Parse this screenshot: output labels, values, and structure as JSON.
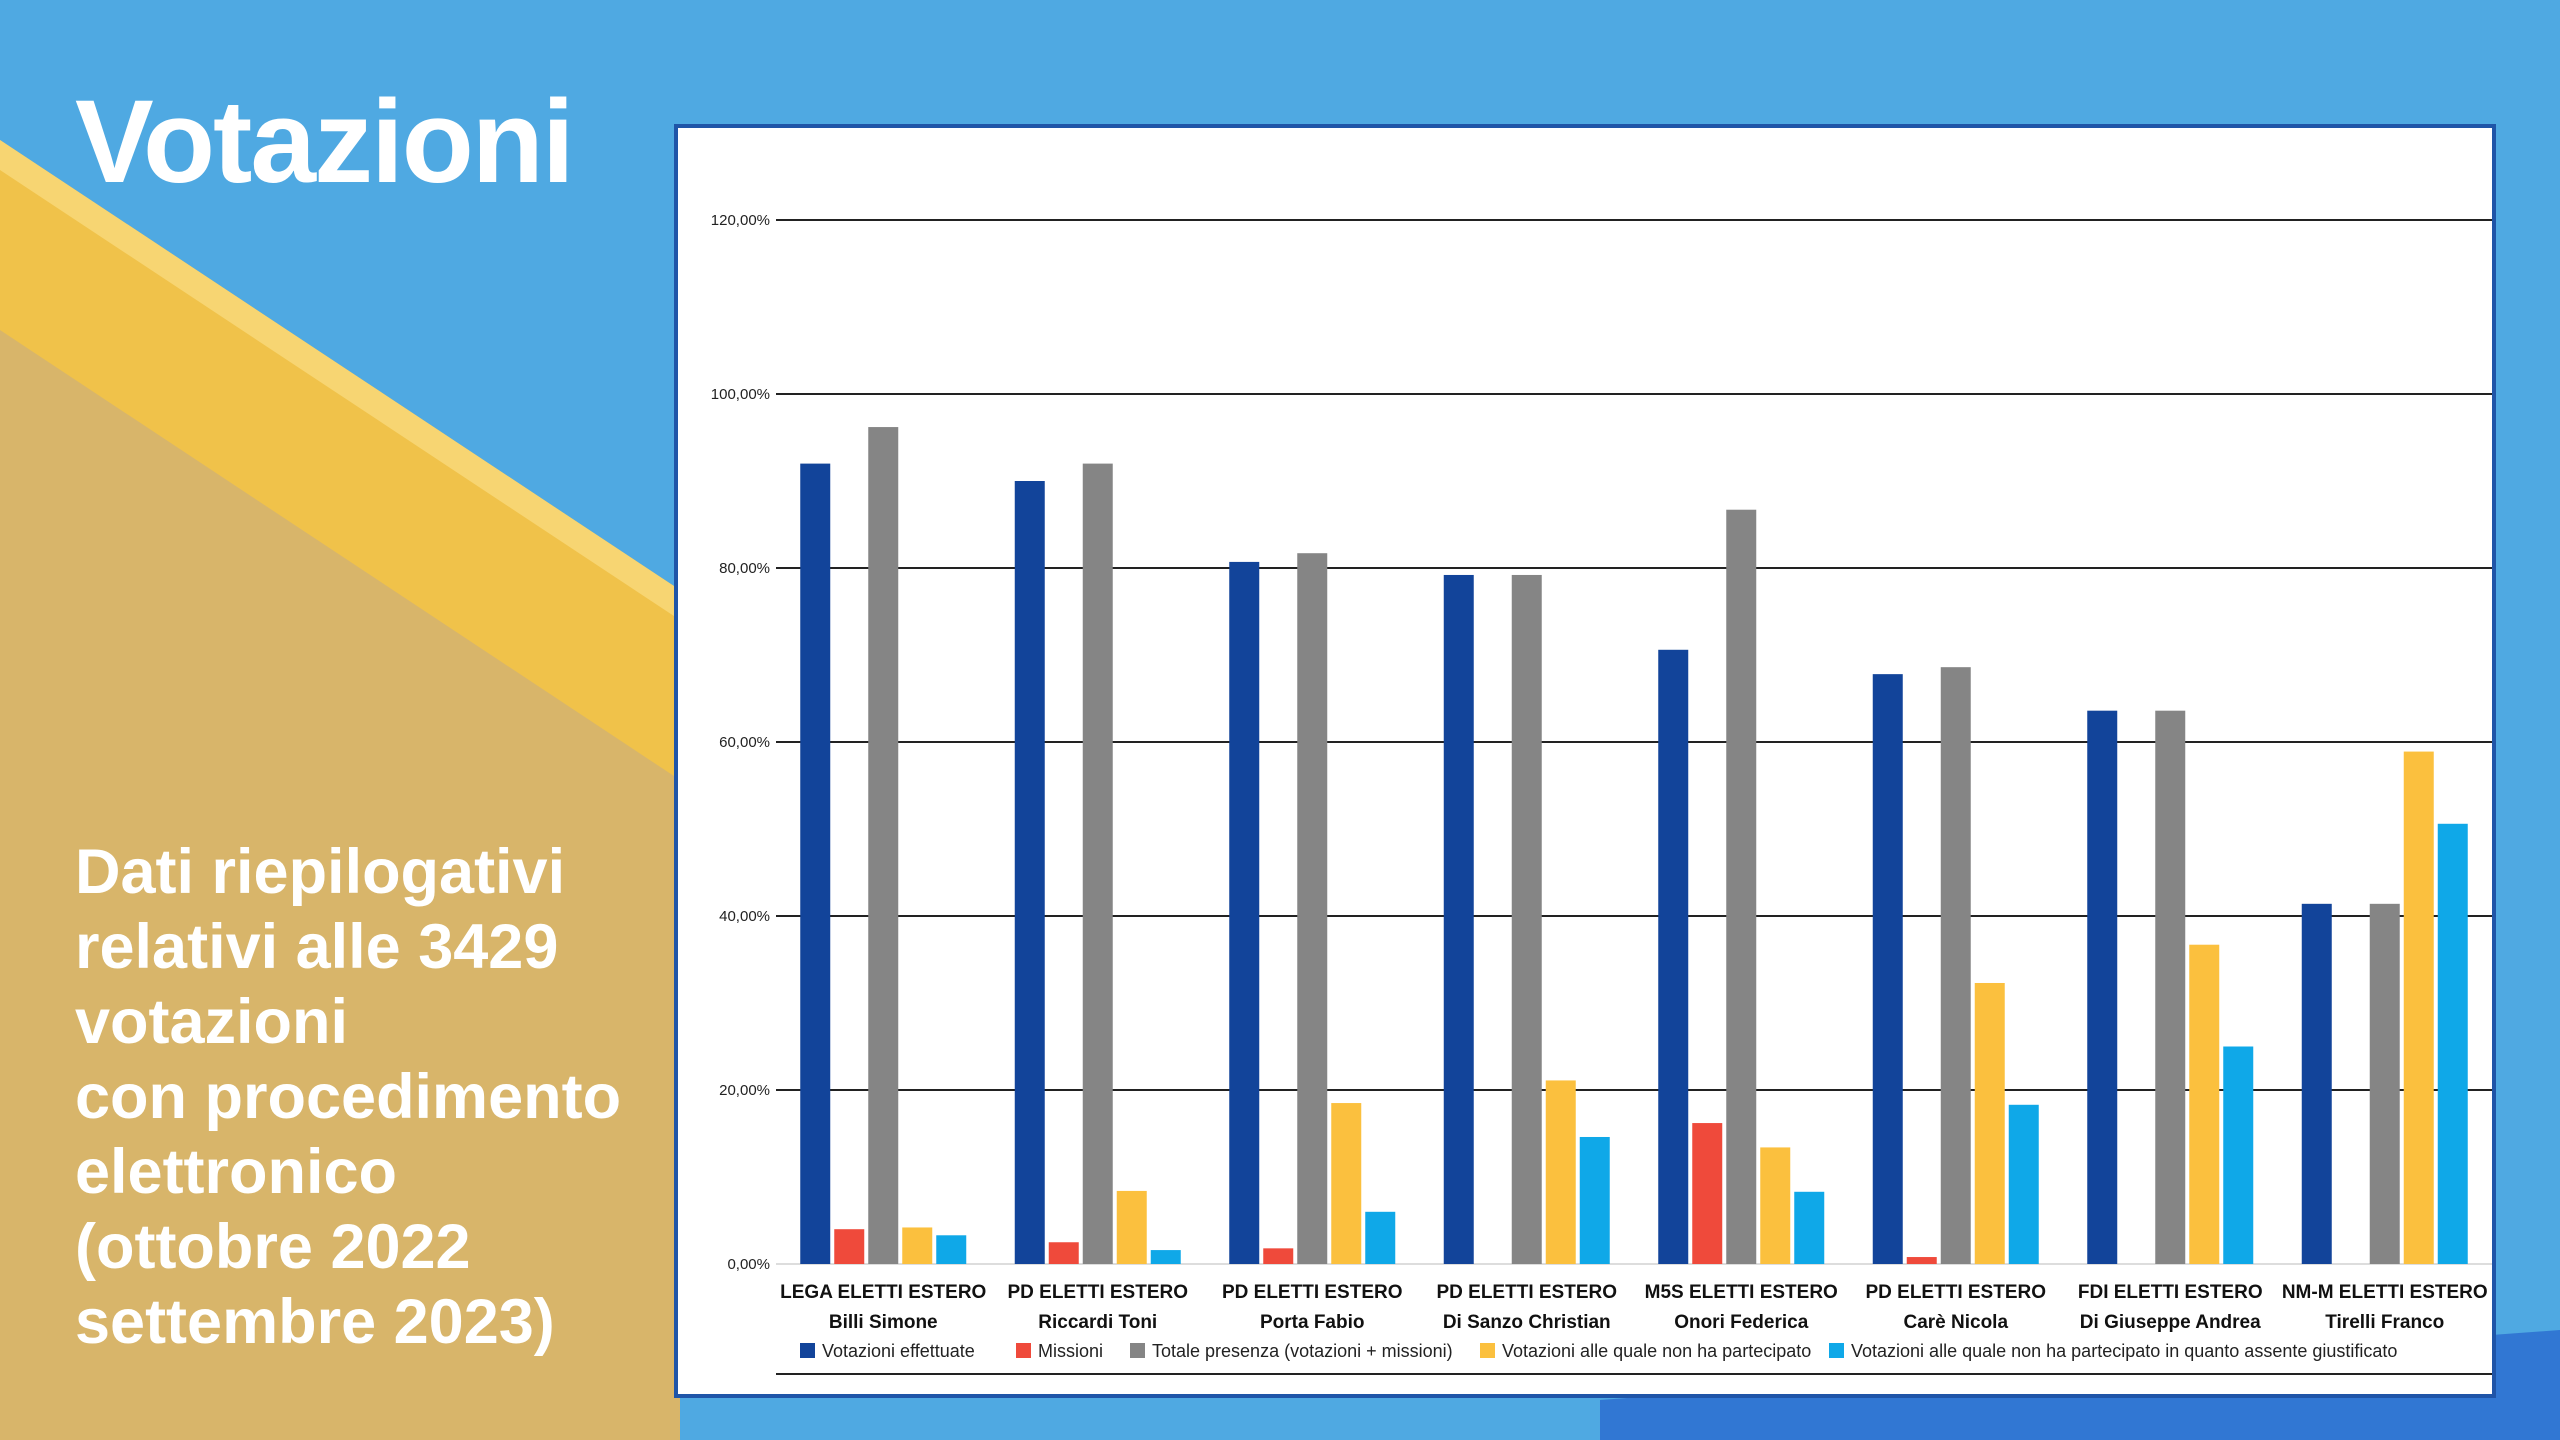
{
  "slide": {
    "title": "Votazioni",
    "subtitle_lines": [
      "Dati riepilogativi",
      "relativi alle 3429",
      "votazioni",
      "con procedimento",
      "elettronico",
      "(ottobre 2022",
      "settembre 2023)"
    ]
  },
  "colors": {
    "background_blue": "#4fa9e2",
    "paper_tan": "#d8b56a",
    "pencil_yellow": "#f0c24a"
  },
  "chart_data": {
    "type": "bar",
    "categories": [
      [
        "LEGA ELETTI ESTERO",
        "Billi Simone"
      ],
      [
        "PD ELETTI ESTERO",
        "Riccardi Toni"
      ],
      [
        "PD ELETTI ESTERO",
        "Porta Fabio"
      ],
      [
        "PD ELETTI ESTERO",
        "Di Sanzo Christian"
      ],
      [
        "M5S ELETTI ESTERO",
        "Onori Federica"
      ],
      [
        "PD ELETTI ESTERO",
        "Carè Nicola"
      ],
      [
        "FDI ELETTI ESTERO",
        "Di Giuseppe Andrea"
      ],
      [
        "NM-M ELETTI ESTERO",
        "Tirelli Franco"
      ]
    ],
    "series": [
      {
        "name": "Votazioni effettuate",
        "color": "#12449a",
        "values": [
          92,
          90,
          80.7,
          79.2,
          70.6,
          67.8,
          63.6,
          41.4
        ]
      },
      {
        "name": "Missioni",
        "color": "#ef4a3b",
        "values": [
          4,
          2.5,
          1.8,
          0,
          16.2,
          0.8,
          0,
          0
        ]
      },
      {
        "name": "Totale presenza (votazioni + missioni)",
        "color": "#858585",
        "values": [
          96.2,
          92,
          81.7,
          79.2,
          86.7,
          68.6,
          63.6,
          41.4
        ]
      },
      {
        "name": "Votazioni alle quale non ha partecipato",
        "color": "#fbc03e",
        "values": [
          4.2,
          8.4,
          18.5,
          21.1,
          13.4,
          32.3,
          36.7,
          58.9
        ]
      },
      {
        "name": "Votazioni alle quale non ha partecipato in quanto assente giustificato",
        "color": "#0fa8e8",
        "values": [
          3.3,
          1.6,
          6,
          14.6,
          8.3,
          18.3,
          25,
          50.6
        ]
      }
    ],
    "yticks": [
      "0,00%",
      "20,00%",
      "40,00%",
      "60,00%",
      "80,00%",
      "100,00%",
      "120,00%"
    ],
    "ylim": [
      0,
      120
    ],
    "grid": true,
    "legend_position": "bottom"
  }
}
